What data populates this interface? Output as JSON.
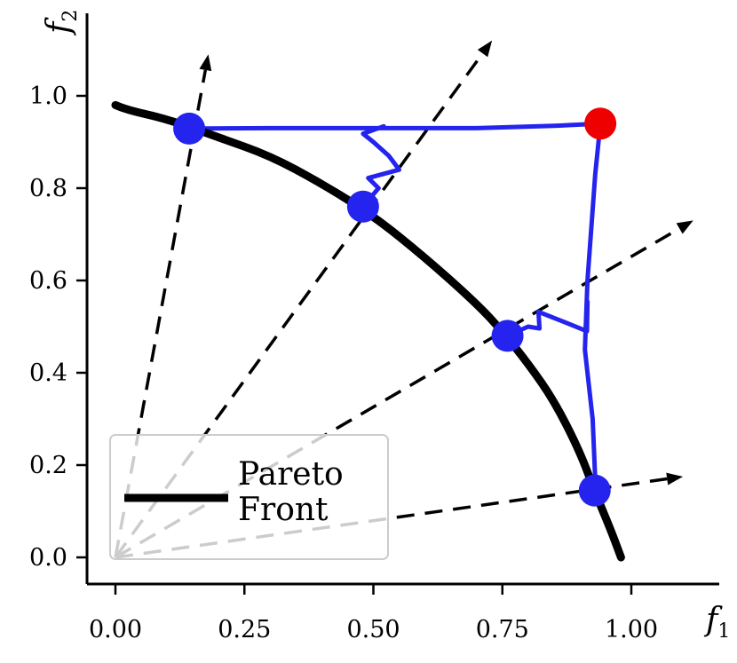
{
  "chart_data": {
    "type": "line",
    "xlabel": "f1",
    "ylabel": "f2",
    "xlim": [
      -0.05,
      1.17
    ],
    "ylim": [
      -0.06,
      1.18
    ],
    "xticks": [
      {
        "value": 0.0,
        "label": "0.00"
      },
      {
        "value": 0.25,
        "label": "0.25"
      },
      {
        "value": 0.5,
        "label": "0.50"
      },
      {
        "value": 0.75,
        "label": "0.75"
      },
      {
        "value": 1.0,
        "label": "1.00"
      }
    ],
    "yticks": [
      {
        "value": 0.0,
        "label": "0.0"
      },
      {
        "value": 0.2,
        "label": "0.2"
      },
      {
        "value": 0.4,
        "label": "0.4"
      },
      {
        "value": 0.6,
        "label": "0.6"
      },
      {
        "value": 0.8,
        "label": "0.8"
      },
      {
        "value": 1.0,
        "label": "1.0"
      }
    ],
    "legend": {
      "placement": "lower-left",
      "entries": [
        {
          "label": "Pareto\nFront",
          "color": "#000000"
        }
      ]
    },
    "pareto_front": {
      "name": "Pareto Front",
      "color": "#000000",
      "points": [
        [
          0.0,
          0.98
        ],
        [
          0.02,
          0.97
        ],
        [
          0.1,
          0.95
        ],
        [
          0.2,
          0.91
        ],
        [
          0.3,
          0.87
        ],
        [
          0.4,
          0.81
        ],
        [
          0.5,
          0.74
        ],
        [
          0.6,
          0.65
        ],
        [
          0.7,
          0.55
        ],
        [
          0.75,
          0.49
        ],
        [
          0.8,
          0.42
        ],
        [
          0.85,
          0.34
        ],
        [
          0.9,
          0.23
        ],
        [
          0.93,
          0.14
        ],
        [
          0.96,
          0.06
        ],
        [
          0.98,
          0.0
        ]
      ]
    },
    "reference_directions": [
      {
        "end": [
          0.18,
          1.09
        ]
      },
      {
        "end": [
          0.73,
          1.12
        ]
      },
      {
        "end": [
          1.12,
          0.73
        ]
      },
      {
        "end": [
          1.1,
          0.175
        ]
      }
    ],
    "blue_color": "#2424ee",
    "optimization_paths": [
      {
        "points": [
          [
            0.94,
            0.94
          ],
          [
            0.85,
            0.935
          ],
          [
            0.7,
            0.93
          ],
          [
            0.5,
            0.93
          ],
          [
            0.3,
            0.93
          ],
          [
            0.143,
            0.929
          ]
        ]
      },
      {
        "points": [
          [
            0.52,
            0.934
          ],
          [
            0.48,
            0.918
          ],
          [
            0.5,
            0.9
          ],
          [
            0.53,
            0.87
          ],
          [
            0.55,
            0.84
          ],
          [
            0.49,
            0.822
          ],
          [
            0.51,
            0.8
          ],
          [
            0.48,
            0.76
          ]
        ]
      },
      {
        "points": [
          [
            0.94,
            0.94
          ],
          [
            0.93,
            0.83
          ],
          [
            0.915,
            0.6
          ],
          [
            0.91,
            0.45
          ],
          [
            0.925,
            0.3
          ],
          [
            0.93,
            0.17
          ],
          [
            0.918,
            0.145
          ]
        ]
      },
      {
        "points": [
          [
            0.915,
            0.554
          ],
          [
            0.914,
            0.49
          ],
          [
            0.87,
            0.51
          ],
          [
            0.82,
            0.532
          ],
          [
            0.822,
            0.496
          ],
          [
            0.8,
            0.5
          ],
          [
            0.76,
            0.48
          ]
        ]
      }
    ],
    "start_point": {
      "x": 0.94,
      "y": 0.94,
      "color": "#ee0000"
    },
    "solutions": [
      {
        "x": 0.143,
        "y": 0.929
      },
      {
        "x": 0.48,
        "y": 0.76
      },
      {
        "x": 0.76,
        "y": 0.48
      },
      {
        "x": 0.929,
        "y": 0.145
      }
    ]
  }
}
